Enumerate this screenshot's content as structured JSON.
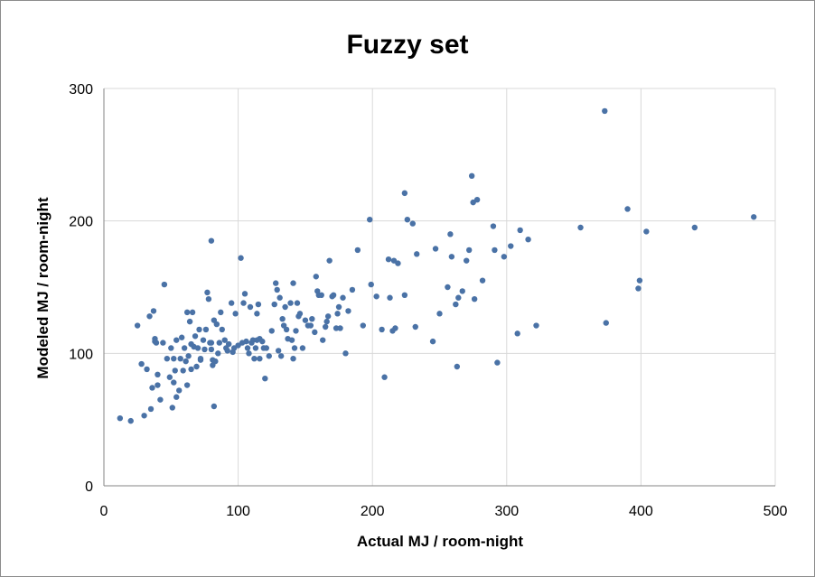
{
  "chart_data": {
    "type": "scatter",
    "title": "Fuzzy set",
    "xlabel": "Actual MJ / room-night",
    "ylabel": "Modeled MJ / room-night",
    "xlim": [
      0,
      500
    ],
    "ylim": [
      0,
      300
    ],
    "xticks": [
      "0",
      "100",
      "200",
      "300",
      "400",
      "500"
    ],
    "yticks": [
      "0",
      "100",
      "200",
      "300"
    ],
    "grid": true,
    "point_color": "#4a72a6",
    "points": [
      [
        12,
        51
      ],
      [
        20,
        49
      ],
      [
        25,
        121
      ],
      [
        28,
        92
      ],
      [
        30,
        53
      ],
      [
        32,
        88
      ],
      [
        34,
        128
      ],
      [
        35,
        58
      ],
      [
        36,
        74
      ],
      [
        37,
        132
      ],
      [
        38,
        111
      ],
      [
        38,
        109
      ],
      [
        39,
        108
      ],
      [
        40,
        84
      ],
      [
        40,
        76
      ],
      [
        42,
        65
      ],
      [
        44,
        108
      ],
      [
        45,
        152
      ],
      [
        47,
        96
      ],
      [
        49,
        82
      ],
      [
        50,
        104
      ],
      [
        51,
        59
      ],
      [
        52,
        96
      ],
      [
        52,
        78
      ],
      [
        53,
        87
      ],
      [
        54,
        67
      ],
      [
        54,
        110
      ],
      [
        56,
        72
      ],
      [
        57,
        96
      ],
      [
        58,
        112
      ],
      [
        59,
        87
      ],
      [
        60,
        104
      ],
      [
        61,
        94
      ],
      [
        62,
        76
      ],
      [
        62,
        131
      ],
      [
        63,
        98
      ],
      [
        64,
        124
      ],
      [
        65,
        107
      ],
      [
        65,
        88
      ],
      [
        66,
        131
      ],
      [
        67,
        105
      ],
      [
        68,
        113
      ],
      [
        69,
        90
      ],
      [
        70,
        104
      ],
      [
        71,
        118
      ],
      [
        72,
        95
      ],
      [
        72,
        96
      ],
      [
        74,
        110
      ],
      [
        75,
        103
      ],
      [
        76,
        118
      ],
      [
        77,
        146
      ],
      [
        78,
        141
      ],
      [
        79,
        108
      ],
      [
        80,
        108
      ],
      [
        80,
        185
      ],
      [
        80,
        103
      ],
      [
        81,
        91
      ],
      [
        81,
        95
      ],
      [
        82,
        125
      ],
      [
        82,
        60
      ],
      [
        83,
        94
      ],
      [
        84,
        122
      ],
      [
        85,
        100
      ],
      [
        86,
        108
      ],
      [
        87,
        131
      ],
      [
        88,
        118
      ],
      [
        90,
        110
      ],
      [
        91,
        104
      ],
      [
        92,
        102
      ],
      [
        93,
        107
      ],
      [
        95,
        138
      ],
      [
        96,
        101
      ],
      [
        97,
        104
      ],
      [
        98,
        130
      ],
      [
        100,
        106
      ],
      [
        102,
        172
      ],
      [
        103,
        108
      ],
      [
        104,
        138
      ],
      [
        105,
        145
      ],
      [
        106,
        109
      ],
      [
        107,
        104
      ],
      [
        108,
        100
      ],
      [
        109,
        135
      ],
      [
        110,
        108
      ],
      [
        111,
        110
      ],
      [
        112,
        96
      ],
      [
        113,
        104
      ],
      [
        114,
        130
      ],
      [
        114,
        110
      ],
      [
        115,
        137
      ],
      [
        116,
        111
      ],
      [
        116,
        96
      ],
      [
        118,
        109
      ],
      [
        119,
        104
      ],
      [
        120,
        81
      ],
      [
        121,
        104
      ],
      [
        123,
        98
      ],
      [
        125,
        117
      ],
      [
        127,
        137
      ],
      [
        128,
        153
      ],
      [
        129,
        148
      ],
      [
        130,
        102
      ],
      [
        131,
        142
      ],
      [
        132,
        98
      ],
      [
        133,
        126
      ],
      [
        134,
        121
      ],
      [
        135,
        135
      ],
      [
        136,
        118
      ],
      [
        137,
        111
      ],
      [
        139,
        138
      ],
      [
        140,
        110
      ],
      [
        141,
        96
      ],
      [
        141,
        153
      ],
      [
        142,
        104
      ],
      [
        143,
        117
      ],
      [
        144,
        138
      ],
      [
        145,
        128
      ],
      [
        146,
        130
      ],
      [
        148,
        104
      ],
      [
        150,
        125
      ],
      [
        152,
        121
      ],
      [
        154,
        121
      ],
      [
        155,
        126
      ],
      [
        157,
        116
      ],
      [
        158,
        158
      ],
      [
        159,
        147
      ],
      [
        160,
        144
      ],
      [
        162,
        144
      ],
      [
        163,
        110
      ],
      [
        165,
        120
      ],
      [
        166,
        124
      ],
      [
        167,
        128
      ],
      [
        168,
        170
      ],
      [
        170,
        143
      ],
      [
        171,
        144
      ],
      [
        173,
        119
      ],
      [
        174,
        130
      ],
      [
        175,
        135
      ],
      [
        176,
        119
      ],
      [
        178,
        142
      ],
      [
        180,
        100
      ],
      [
        182,
        132
      ],
      [
        185,
        148
      ],
      [
        189,
        178
      ],
      [
        193,
        121
      ],
      [
        198,
        201
      ],
      [
        199,
        152
      ],
      [
        203,
        143
      ],
      [
        207,
        118
      ],
      [
        209,
        82
      ],
      [
        212,
        171
      ],
      [
        213,
        142
      ],
      [
        215,
        117
      ],
      [
        216,
        170
      ],
      [
        217,
        119
      ],
      [
        219,
        168
      ],
      [
        224,
        144
      ],
      [
        224,
        221
      ],
      [
        226,
        201
      ],
      [
        230,
        198
      ],
      [
        232,
        120
      ],
      [
        233,
        175
      ],
      [
        245,
        109
      ],
      [
        247,
        179
      ],
      [
        250,
        130
      ],
      [
        256,
        150
      ],
      [
        258,
        190
      ],
      [
        259,
        173
      ],
      [
        262,
        137
      ],
      [
        263,
        90
      ],
      [
        264,
        142
      ],
      [
        267,
        147
      ],
      [
        270,
        170
      ],
      [
        272,
        178
      ],
      [
        274,
        234
      ],
      [
        275,
        214
      ],
      [
        276,
        141
      ],
      [
        278,
        216
      ],
      [
        282,
        155
      ],
      [
        290,
        196
      ],
      [
        291,
        178
      ],
      [
        293,
        93
      ],
      [
        298,
        173
      ],
      [
        303,
        181
      ],
      [
        308,
        115
      ],
      [
        310,
        193
      ],
      [
        316,
        186
      ],
      [
        322,
        121
      ],
      [
        355,
        195
      ],
      [
        373,
        283
      ],
      [
        374,
        123
      ],
      [
        390,
        209
      ],
      [
        398,
        149
      ],
      [
        399,
        155
      ],
      [
        404,
        192
      ],
      [
        440,
        195
      ],
      [
        484,
        203
      ]
    ]
  }
}
